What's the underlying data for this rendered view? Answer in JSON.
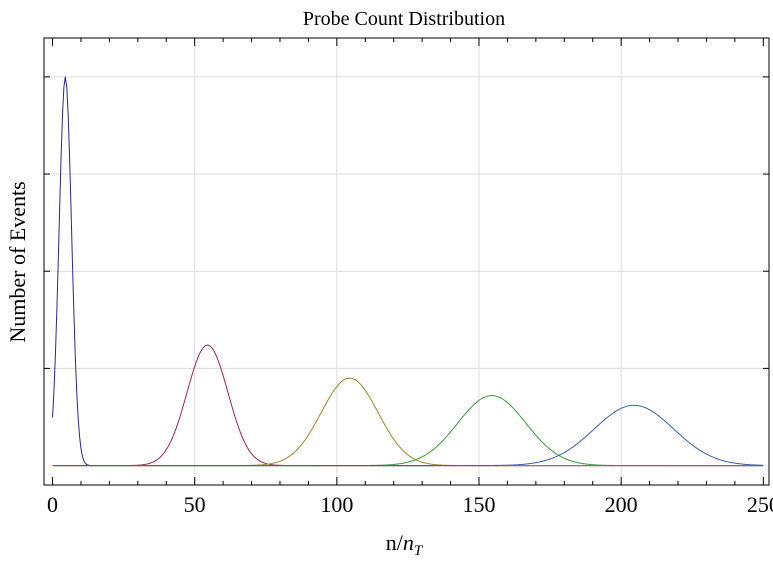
{
  "chart_data": {
    "type": "line",
    "title": "Probe Count Distribution",
    "xlabel": "n/",
    "xlabel_italic": "n",
    "xlabel_sub": "T",
    "ylabel": "Number of Events",
    "xlim": [
      -3,
      252
    ],
    "ylim": [
      -0.05,
      1.1
    ],
    "x_ticks": [
      0,
      50,
      100,
      150,
      200,
      250
    ],
    "x_minor_step": 10,
    "x_grid": [
      50,
      100,
      150,
      200
    ],
    "y_grid": [
      0.25,
      0.5,
      0.75,
      1.0
    ],
    "y_ticks_minor": [
      0.25,
      0.5,
      0.75,
      1.0
    ],
    "grid": true,
    "series": [
      {
        "color": "#2a2a8c",
        "center": 4.5,
        "sigma": 2.2,
        "peak": 1.0,
        "x_start": 0,
        "x_end": 250
      },
      {
        "color": "#a0284f",
        "center": 54.5,
        "sigma": 7.2,
        "peak": 0.31,
        "x_start": 0,
        "x_end": 250
      },
      {
        "color": "#9a8a2c",
        "center": 104.5,
        "sigma": 10.0,
        "peak": 0.225,
        "x_start": 0,
        "x_end": 250
      },
      {
        "color": "#3f9a3f",
        "center": 154.5,
        "sigma": 12.0,
        "peak": 0.18,
        "x_start": 0,
        "x_end": 250
      },
      {
        "color": "#3a62a8",
        "center": 204.5,
        "sigma": 14.0,
        "peak": 0.155,
        "x_start": 0,
        "x_end": 250
      }
    ]
  }
}
